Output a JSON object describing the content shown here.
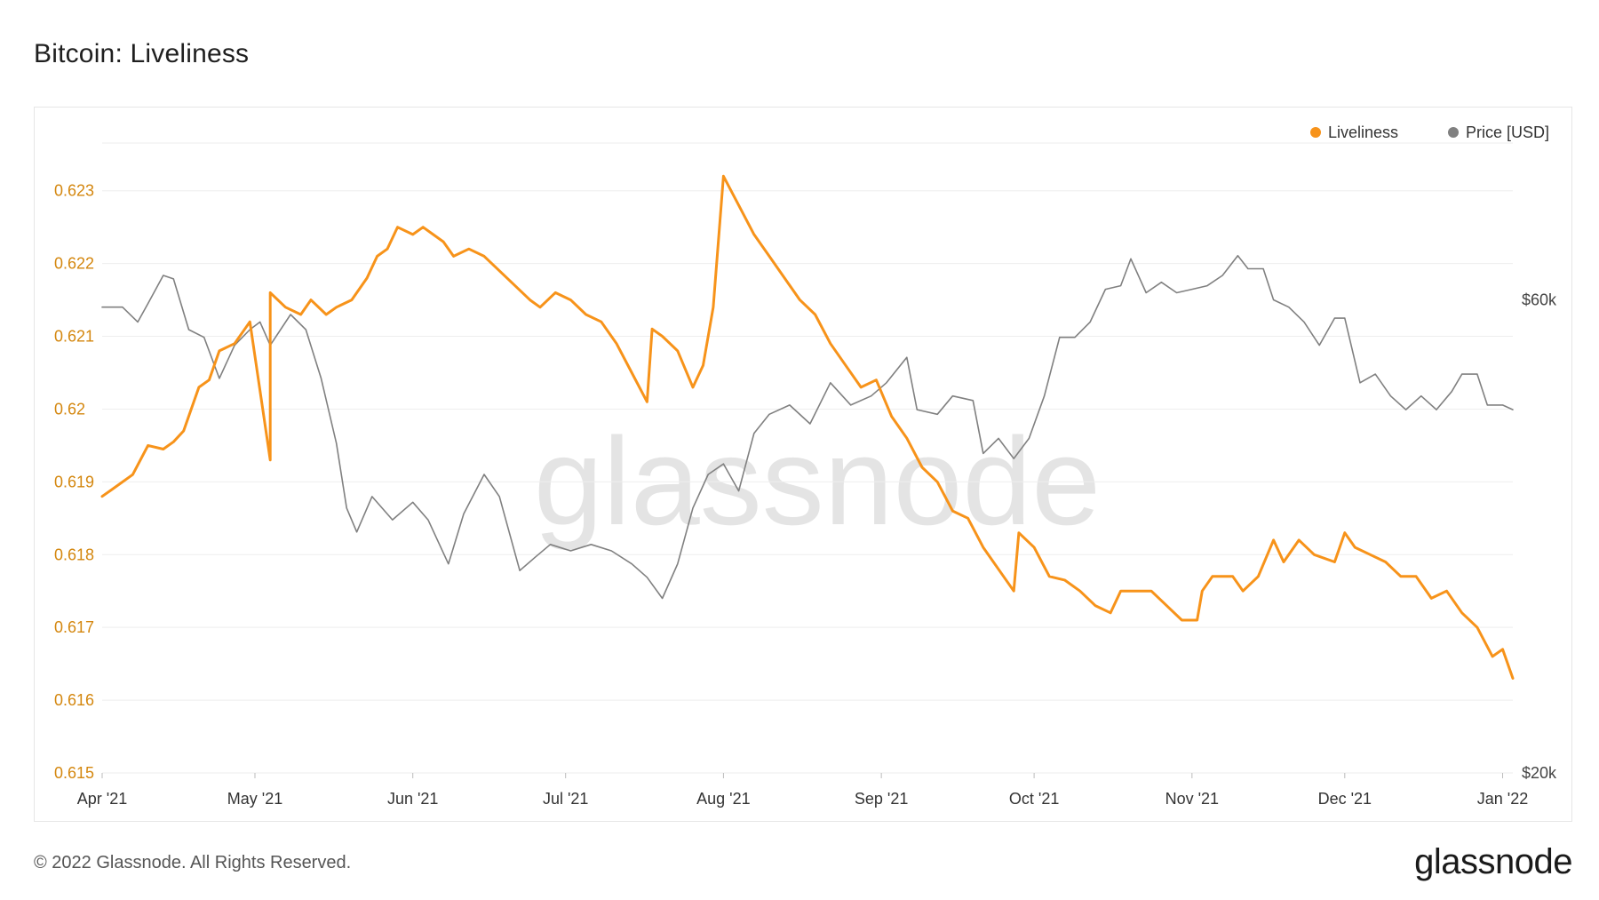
{
  "page": {
    "title": "Bitcoin: Liveliness",
    "copyright": "© 2022 Glassnode. All Rights Reserved.",
    "brand": "glassnode",
    "watermark": "glassnode"
  },
  "colors": {
    "liveliness": "#f7931a",
    "price": "#808080",
    "left_axis_text": "#d4870f",
    "grid": "#eeeeee"
  },
  "chart_data": {
    "type": "line",
    "title": "Bitcoin: Liveliness",
    "grid": true,
    "legend_position": "top-right",
    "x_ticks": [
      {
        "date": "2021-04-01",
        "label": "Apr '21"
      },
      {
        "date": "2021-05-01",
        "label": "May '21"
      },
      {
        "date": "2021-06-01",
        "label": "Jun '21"
      },
      {
        "date": "2021-07-01",
        "label": "Jul '21"
      },
      {
        "date": "2021-08-01",
        "label": "Aug '21"
      },
      {
        "date": "2021-09-01",
        "label": "Sep '21"
      },
      {
        "date": "2021-10-01",
        "label": "Oct '21"
      },
      {
        "date": "2021-11-01",
        "label": "Nov '21"
      },
      {
        "date": "2021-12-01",
        "label": "Dec '21"
      },
      {
        "date": "2022-01-01",
        "label": "Jan '22"
      }
    ],
    "xlim": [
      "2021-04-01",
      "2022-01-03"
    ],
    "y_left": {
      "ylim": [
        0.615,
        0.6239
      ],
      "ticks": [
        0.615,
        0.616,
        0.617,
        0.618,
        0.619,
        0.62,
        0.621,
        0.622,
        0.623
      ],
      "tick_labels": [
        "0.615",
        "0.616",
        "0.617",
        "0.618",
        "0.619",
        "0.62",
        "0.621",
        "0.622",
        "0.623"
      ]
    },
    "y_right": {
      "scale": "log",
      "ylim": [
        20000,
        90000
      ],
      "ticks": [
        20000,
        60000
      ],
      "tick_labels": [
        "$20k",
        "$60k"
      ]
    },
    "series": [
      {
        "name": "Liveliness",
        "axis": "left",
        "points": [
          [
            "2021-04-01",
            0.6188
          ],
          [
            "2021-04-03",
            0.6189
          ],
          [
            "2021-05-04",
            0.6193
          ],
          [
            "2021-04-07",
            0.6191
          ],
          [
            "2021-04-10",
            0.6195
          ],
          [
            "2021-04-13",
            0.61945
          ],
          [
            "2021-04-15",
            0.61955
          ],
          [
            "2021-04-17",
            0.6197
          ],
          [
            "2021-04-20",
            0.6203
          ],
          [
            "2021-04-22",
            0.6204
          ],
          [
            "2021-04-24",
            0.6208
          ],
          [
            "2021-04-27",
            0.6209
          ],
          [
            "2021-04-30",
            0.6212
          ],
          [
            "2021-05-04",
            0.6216
          ],
          [
            "2021-05-07",
            0.6214
          ],
          [
            "2021-05-10",
            0.6213
          ],
          [
            "2021-05-12",
            0.6215
          ],
          [
            "2021-05-15",
            0.6213
          ],
          [
            "2021-05-17",
            0.6214
          ],
          [
            "2021-05-20",
            0.6215
          ],
          [
            "2021-05-23",
            0.6218
          ],
          [
            "2021-05-25",
            0.6221
          ],
          [
            "2021-05-27",
            0.6222
          ],
          [
            "2021-05-29",
            0.6225
          ],
          [
            "2021-06-01",
            0.6224
          ],
          [
            "2021-06-03",
            0.6225
          ],
          [
            "2021-06-05",
            0.6224
          ],
          [
            "2021-06-07",
            0.6223
          ],
          [
            "2021-06-09",
            0.6221
          ],
          [
            "2021-06-12",
            0.6222
          ],
          [
            "2021-06-15",
            0.6221
          ],
          [
            "2021-06-18",
            0.6219
          ],
          [
            "2021-06-21",
            0.6217
          ],
          [
            "2021-06-24",
            0.6215
          ],
          [
            "2021-06-26",
            0.6214
          ],
          [
            "2021-06-29",
            0.6216
          ],
          [
            "2021-07-02",
            0.6215
          ],
          [
            "2021-07-05",
            0.6213
          ],
          [
            "2021-07-08",
            0.6212
          ],
          [
            "2021-07-11",
            0.6209
          ],
          [
            "2021-07-14",
            0.6205
          ],
          [
            "2021-07-17",
            0.6201
          ],
          [
            "2021-07-18",
            0.6211
          ],
          [
            "2021-07-20",
            0.621
          ],
          [
            "2021-07-23",
            0.6208
          ],
          [
            "2021-07-26",
            0.6203
          ],
          [
            "2021-07-28",
            0.6206
          ],
          [
            "2021-07-30",
            0.6214
          ],
          [
            "2021-08-01",
            0.6232
          ],
          [
            "2021-08-04",
            0.6228
          ],
          [
            "2021-08-07",
            0.6224
          ],
          [
            "2021-08-10",
            0.6221
          ],
          [
            "2021-08-13",
            0.6218
          ],
          [
            "2021-08-16",
            0.6215
          ],
          [
            "2021-08-19",
            0.6213
          ],
          [
            "2021-08-22",
            0.6209
          ],
          [
            "2021-08-25",
            0.6206
          ],
          [
            "2021-08-28",
            0.6203
          ],
          [
            "2021-08-31",
            0.6204
          ],
          [
            "2021-09-03",
            0.6199
          ],
          [
            "2021-09-06",
            0.6196
          ],
          [
            "2021-09-09",
            0.6192
          ],
          [
            "2021-09-12",
            0.619
          ],
          [
            "2021-09-15",
            0.6186
          ],
          [
            "2021-09-18",
            0.6185
          ],
          [
            "2021-09-21",
            0.6181
          ],
          [
            "2021-09-24",
            0.6178
          ],
          [
            "2021-09-27",
            0.6175
          ],
          [
            "2021-09-28",
            0.6183
          ],
          [
            "2021-10-01",
            0.6181
          ],
          [
            "2021-10-04",
            0.6177
          ],
          [
            "2021-10-07",
            0.61765
          ],
          [
            "2021-10-10",
            0.6175
          ],
          [
            "2021-10-13",
            0.6173
          ],
          [
            "2021-10-16",
            0.6172
          ],
          [
            "2021-10-18",
            0.6175
          ],
          [
            "2021-10-21",
            0.6175
          ],
          [
            "2021-10-24",
            0.6175
          ],
          [
            "2021-10-27",
            0.6173
          ],
          [
            "2021-10-30",
            0.6171
          ],
          [
            "2021-11-02",
            0.6171
          ],
          [
            "2021-11-03",
            0.6175
          ],
          [
            "2021-11-05",
            0.6177
          ],
          [
            "2021-11-09",
            0.6177
          ],
          [
            "2021-11-11",
            0.6175
          ],
          [
            "2021-11-14",
            0.6177
          ],
          [
            "2021-11-17",
            0.6182
          ],
          [
            "2021-11-19",
            0.6179
          ],
          [
            "2021-11-22",
            0.6182
          ],
          [
            "2021-11-25",
            0.618
          ],
          [
            "2021-11-29",
            0.6179
          ],
          [
            "2021-12-01",
            0.6183
          ],
          [
            "2021-12-03",
            0.6181
          ],
          [
            "2021-12-06",
            0.618
          ],
          [
            "2021-12-09",
            0.6179
          ],
          [
            "2021-12-12",
            0.6177
          ],
          [
            "2021-12-15",
            0.6177
          ],
          [
            "2021-12-18",
            0.6174
          ],
          [
            "2021-12-21",
            0.6175
          ],
          [
            "2021-12-24",
            0.6172
          ],
          [
            "2021-12-27",
            0.617
          ],
          [
            "2021-12-30",
            0.6166
          ],
          [
            "2022-01-01",
            0.6167
          ],
          [
            "2022-01-03",
            0.6163
          ]
        ]
      },
      {
        "name": "Price [USD]",
        "axis": "right",
        "points": [
          [
            "2021-04-01",
            59000
          ],
          [
            "2021-04-05",
            59000
          ],
          [
            "2021-04-08",
            57000
          ],
          [
            "2021-04-10",
            59500
          ],
          [
            "2021-04-13",
            63500
          ],
          [
            "2021-04-15",
            63000
          ],
          [
            "2021-04-18",
            56000
          ],
          [
            "2021-04-21",
            55000
          ],
          [
            "2021-04-24",
            50000
          ],
          [
            "2021-04-27",
            54000
          ],
          [
            "2021-04-30",
            56000
          ],
          [
            "2021-05-02",
            57000
          ],
          [
            "2021-05-04",
            54000
          ],
          [
            "2021-05-08",
            58000
          ],
          [
            "2021-05-11",
            56000
          ],
          [
            "2021-05-14",
            50000
          ],
          [
            "2021-05-17",
            43000
          ],
          [
            "2021-05-19",
            37000
          ],
          [
            "2021-05-21",
            35000
          ],
          [
            "2021-05-24",
            38000
          ],
          [
            "2021-05-28",
            36000
          ],
          [
            "2021-06-01",
            37500
          ],
          [
            "2021-06-04",
            36000
          ],
          [
            "2021-06-08",
            32500
          ],
          [
            "2021-06-11",
            36500
          ],
          [
            "2021-06-15",
            40000
          ],
          [
            "2021-06-18",
            38000
          ],
          [
            "2021-06-22",
            32000
          ],
          [
            "2021-06-25",
            33000
          ],
          [
            "2021-06-28",
            34000
          ],
          [
            "2021-07-02",
            33500
          ],
          [
            "2021-07-06",
            34000
          ],
          [
            "2021-07-10",
            33500
          ],
          [
            "2021-07-14",
            32500
          ],
          [
            "2021-07-17",
            31500
          ],
          [
            "2021-07-20",
            30000
          ],
          [
            "2021-07-23",
            32500
          ],
          [
            "2021-07-26",
            37000
          ],
          [
            "2021-07-29",
            40000
          ],
          [
            "2021-08-01",
            41000
          ],
          [
            "2021-08-04",
            38500
          ],
          [
            "2021-08-07",
            44000
          ],
          [
            "2021-08-10",
            46000
          ],
          [
            "2021-08-14",
            47000
          ],
          [
            "2021-08-18",
            45000
          ],
          [
            "2021-08-22",
            49500
          ],
          [
            "2021-08-26",
            47000
          ],
          [
            "2021-08-30",
            48000
          ],
          [
            "2021-09-02",
            49500
          ],
          [
            "2021-09-06",
            52500
          ],
          [
            "2021-09-08",
            46500
          ],
          [
            "2021-09-12",
            46000
          ],
          [
            "2021-09-15",
            48000
          ],
          [
            "2021-09-19",
            47500
          ],
          [
            "2021-09-21",
            42000
          ],
          [
            "2021-09-24",
            43500
          ],
          [
            "2021-09-27",
            41500
          ],
          [
            "2021-09-30",
            43500
          ],
          [
            "2021-10-03",
            48000
          ],
          [
            "2021-10-06",
            55000
          ],
          [
            "2021-10-09",
            55000
          ],
          [
            "2021-10-12",
            57000
          ],
          [
            "2021-10-15",
            61500
          ],
          [
            "2021-10-18",
            62000
          ],
          [
            "2021-10-20",
            66000
          ],
          [
            "2021-10-23",
            61000
          ],
          [
            "2021-10-26",
            62500
          ],
          [
            "2021-10-29",
            61000
          ],
          [
            "2021-11-01",
            61500
          ],
          [
            "2021-11-04",
            62000
          ],
          [
            "2021-11-07",
            63500
          ],
          [
            "2021-11-10",
            66500
          ],
          [
            "2021-11-12",
            64500
          ],
          [
            "2021-11-15",
            64500
          ],
          [
            "2021-11-17",
            60000
          ],
          [
            "2021-11-20",
            59000
          ],
          [
            "2021-11-23",
            57000
          ],
          [
            "2021-11-26",
            54000
          ],
          [
            "2021-11-29",
            57500
          ],
          [
            "2021-12-01",
            57500
          ],
          [
            "2021-12-04",
            49500
          ],
          [
            "2021-12-07",
            50500
          ],
          [
            "2021-12-10",
            48000
          ],
          [
            "2021-12-13",
            46500
          ],
          [
            "2021-12-16",
            48000
          ],
          [
            "2021-12-19",
            46500
          ],
          [
            "2021-12-22",
            48500
          ],
          [
            "2021-12-24",
            50500
          ],
          [
            "2021-12-27",
            50500
          ],
          [
            "2021-12-29",
            47000
          ],
          [
            "2022-01-01",
            47000
          ],
          [
            "2022-01-03",
            46500
          ]
        ]
      }
    ]
  }
}
